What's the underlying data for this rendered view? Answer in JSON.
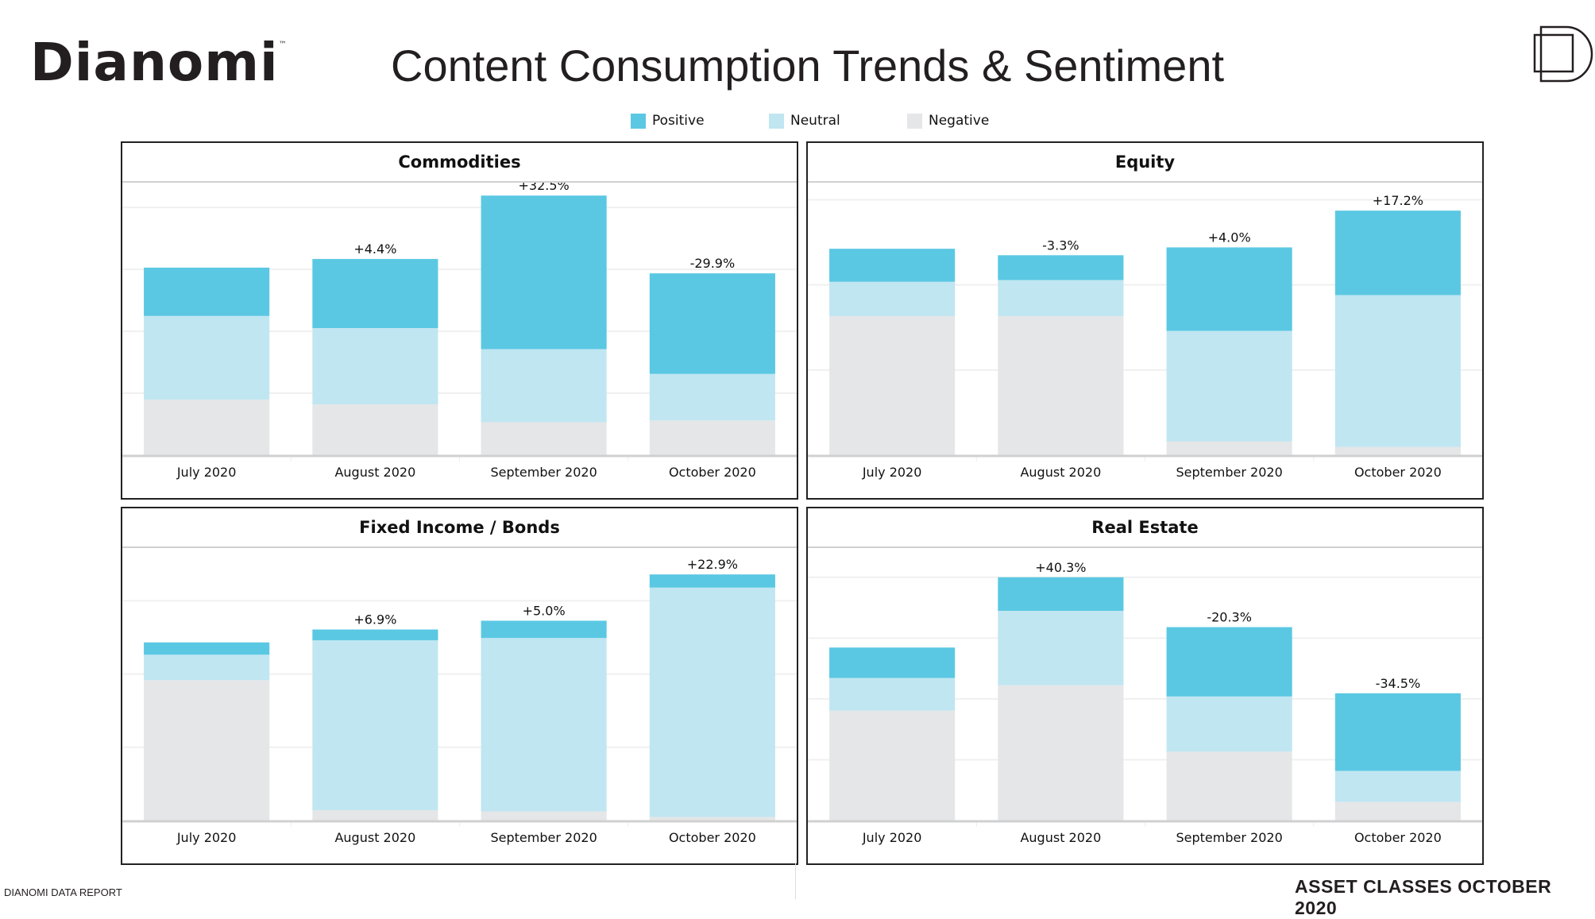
{
  "header": {
    "logo_text": "Dianomi",
    "logo_tm": "™",
    "title": "Content Consumption Trends & Sentiment",
    "brand_icon": "dianomi-d-mark-icon"
  },
  "legend": [
    {
      "label": "Positive",
      "color": "#5bc8e3"
    },
    {
      "label": "Neutral",
      "color": "#c0e6f1"
    },
    {
      "label": "Negative",
      "color": "#e5e6e8"
    }
  ],
  "footer": {
    "left": "DIANOMI DATA REPORT",
    "right": "ASSET CLASSES OCTOBER 2020"
  },
  "chart_data": [
    {
      "type": "bar",
      "stacked": true,
      "title": "Commodities",
      "categories": [
        "July 2020",
        "August 2020",
        "September 2020",
        "October 2020"
      ],
      "series": [
        {
          "name": "Negative",
          "values": [
            22.4,
            20.5,
            13.3,
            14.0
          ]
        },
        {
          "name": "Neutral",
          "values": [
            33.8,
            30.8,
            29.5,
            18.8
          ]
        },
        {
          "name": "Positive",
          "values": [
            19.5,
            27.9,
            62.0,
            40.6
          ]
        }
      ],
      "data_labels": [
        "",
        "+4.4%",
        "+32.5%",
        "-29.9%"
      ],
      "ylim": [
        0,
        110
      ],
      "grid": true
    },
    {
      "type": "bar",
      "stacked": true,
      "title": "Equity",
      "categories": [
        "July 2020",
        "August 2020",
        "September 2020",
        "October 2020"
      ],
      "series": [
        {
          "name": "Negative",
          "values": [
            40.8,
            40.8,
            4.0,
            2.4
          ]
        },
        {
          "name": "Neutral",
          "values": [
            10.1,
            10.6,
            32.5,
            44.6
          ]
        },
        {
          "name": "Positive",
          "values": [
            9.7,
            7.3,
            24.5,
            24.8
          ]
        }
      ],
      "data_labels": [
        "",
        "-3.3%",
        "+4.0%",
        "+17.2%"
      ],
      "ylim": [
        0,
        80
      ],
      "grid": true
    },
    {
      "type": "bar",
      "stacked": true,
      "title": "Fixed Income / Bonds",
      "categories": [
        "July 2020",
        "August 2020",
        "September 2020",
        "October 2020"
      ],
      "series": [
        {
          "name": "Negative",
          "values": [
            47.9,
            3.5,
            3.1,
            1.2
          ]
        },
        {
          "name": "Neutral",
          "values": [
            8.7,
            58.0,
            59.2,
            78.3
          ]
        },
        {
          "name": "Positive",
          "values": [
            4.2,
            3.7,
            5.9,
            4.5
          ]
        }
      ],
      "data_labels": [
        "",
        "+6.9%",
        "+5.0%",
        "+22.9%"
      ],
      "ylim": [
        0,
        93
      ],
      "grid": true
    },
    {
      "type": "bar",
      "stacked": true,
      "title": "Real Estate",
      "categories": [
        "July 2020",
        "August 2020",
        "September 2020",
        "October 2020"
      ],
      "series": [
        {
          "name": "Negative",
          "values": [
            45.2,
            55.6,
            28.3,
            7.6
          ]
        },
        {
          "name": "Neutral",
          "values": [
            13.4,
            30.6,
            22.7,
            12.8
          ]
        },
        {
          "name": "Positive",
          "values": [
            12.5,
            13.8,
            28.5,
            31.9
          ]
        }
      ],
      "data_labels": [
        "",
        "+40.3%",
        "-20.3%",
        "-34.5%"
      ],
      "ylim": [
        0,
        112
      ],
      "grid": true
    }
  ]
}
